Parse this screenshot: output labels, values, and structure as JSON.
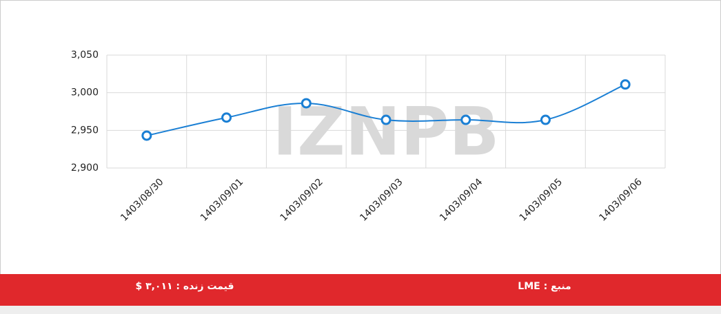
{
  "chart_data": {
    "type": "line",
    "watermark": "IZNPB",
    "categories": [
      "1403/08/30",
      "1403/09/01",
      "1403/09/02",
      "1403/09/03",
      "1403/09/04",
      "1403/09/05",
      "1403/09/06"
    ],
    "series": [
      {
        "color": "#1a7fd4",
        "values": [
          2943,
          2967,
          2986,
          2964,
          2964,
          2964,
          3011
        ]
      }
    ],
    "ylim": [
      2900,
      3050
    ],
    "yticks": [
      {
        "value": 2900,
        "label": "2,900"
      },
      {
        "value": 2950,
        "label": "2,950"
      },
      {
        "value": 3000,
        "label": "3,000"
      },
      {
        "value": 3050,
        "label": "3,050"
      }
    ],
    "grid": true
  },
  "footer": {
    "live_price": "قیمت زنده : ۳,۰۱۱ $",
    "source": "منبع : LME"
  }
}
